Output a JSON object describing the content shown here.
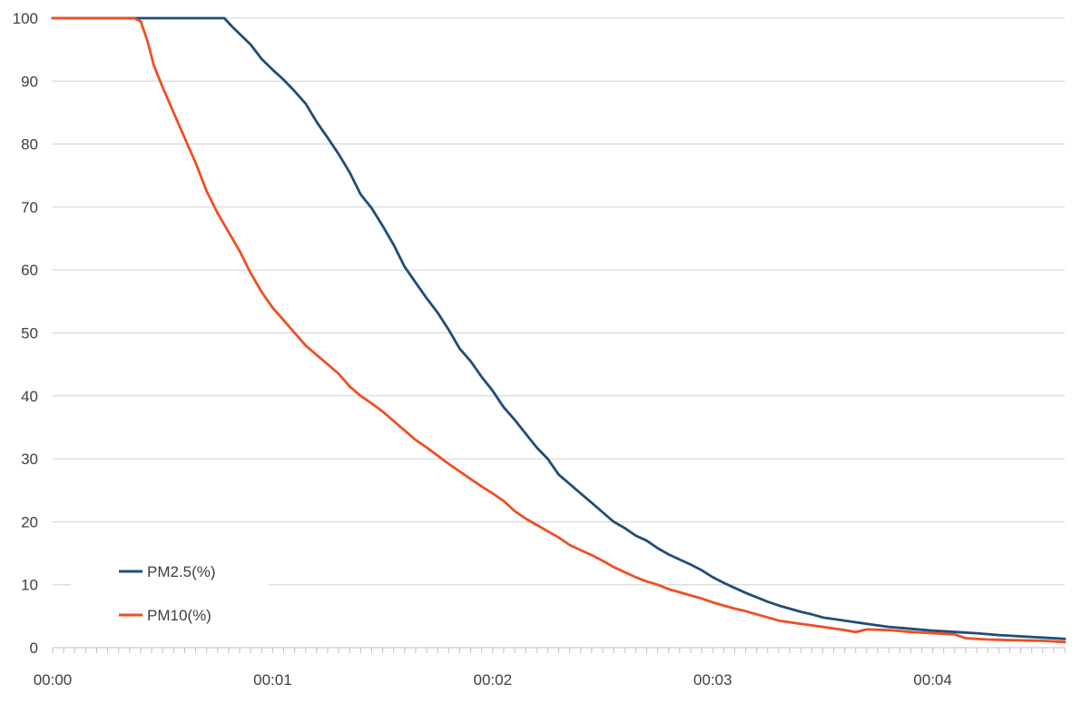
{
  "chart_data": {
    "type": "line",
    "title": "",
    "xlabel": "",
    "ylabel": "",
    "x_tick_labels": [
      "00:00",
      "00:01",
      "00:02",
      "00:03",
      "00:04"
    ],
    "x_unit": "minutes",
    "xlim": [
      0,
      4.6
    ],
    "ylim": [
      0,
      100
    ],
    "y_ticks": [
      0,
      10,
      20,
      30,
      40,
      50,
      60,
      70,
      80,
      90,
      100
    ],
    "grid": true,
    "legend_position": "bottom-left",
    "series": [
      {
        "name": "PM2.5(%)",
        "color": "#1F4E79",
        "points": [
          [
            0,
            100
          ],
          [
            0.7,
            100
          ],
          [
            0.78,
            100
          ],
          [
            0.82,
            98.5
          ],
          [
            0.9,
            95.8
          ],
          [
            0.95,
            93.5
          ],
          [
            1.0,
            91.8
          ],
          [
            1.05,
            90.2
          ],
          [
            1.1,
            88.4
          ],
          [
            1.15,
            86.4
          ],
          [
            1.2,
            83.5
          ],
          [
            1.25,
            81.0
          ],
          [
            1.3,
            78.4
          ],
          [
            1.35,
            75.5
          ],
          [
            1.4,
            72.0
          ],
          [
            1.45,
            69.8
          ],
          [
            1.5,
            67.0
          ],
          [
            1.55,
            64.0
          ],
          [
            1.6,
            60.5
          ],
          [
            1.65,
            58.0
          ],
          [
            1.7,
            55.5
          ],
          [
            1.75,
            53.2
          ],
          [
            1.8,
            50.5
          ],
          [
            1.85,
            47.5
          ],
          [
            1.9,
            45.5
          ],
          [
            1.95,
            43.0
          ],
          [
            2.0,
            40.8
          ],
          [
            2.05,
            38.2
          ],
          [
            2.1,
            36.2
          ],
          [
            2.15,
            34.0
          ],
          [
            2.2,
            31.8
          ],
          [
            2.25,
            30.0
          ],
          [
            2.3,
            27.5
          ],
          [
            2.35,
            26.0
          ],
          [
            2.4,
            24.5
          ],
          [
            2.45,
            23.0
          ],
          [
            2.5,
            21.5
          ],
          [
            2.55,
            20.0
          ],
          [
            2.6,
            19.0
          ],
          [
            2.65,
            17.8
          ],
          [
            2.7,
            17.0
          ],
          [
            2.75,
            15.8
          ],
          [
            2.8,
            14.8
          ],
          [
            2.85,
            14.0
          ],
          [
            2.9,
            13.2
          ],
          [
            2.95,
            12.3
          ],
          [
            3.0,
            11.2
          ],
          [
            3.05,
            10.3
          ],
          [
            3.1,
            9.5
          ],
          [
            3.15,
            8.7
          ],
          [
            3.2,
            8.0
          ],
          [
            3.25,
            7.3
          ],
          [
            3.3,
            6.7
          ],
          [
            3.35,
            6.2
          ],
          [
            3.4,
            5.7
          ],
          [
            3.45,
            5.3
          ],
          [
            3.5,
            4.8
          ],
          [
            3.6,
            4.3
          ],
          [
            3.7,
            3.8
          ],
          [
            3.8,
            3.3
          ],
          [
            3.9,
            3.0
          ],
          [
            4.0,
            2.7
          ],
          [
            4.1,
            2.5
          ],
          [
            4.2,
            2.3
          ],
          [
            4.3,
            2.0
          ],
          [
            4.4,
            1.8
          ],
          [
            4.5,
            1.6
          ],
          [
            4.6,
            1.4
          ]
        ]
      },
      {
        "name": "PM10(%)",
        "color": "#F04E23",
        "points": [
          [
            0,
            100
          ],
          [
            0.37,
            100
          ],
          [
            0.4,
            99.5
          ],
          [
            0.43,
            96.5
          ],
          [
            0.46,
            92.5
          ],
          [
            0.5,
            89.0
          ],
          [
            0.55,
            85.0
          ],
          [
            0.6,
            81.0
          ],
          [
            0.65,
            77.0
          ],
          [
            0.7,
            72.5
          ],
          [
            0.75,
            69.0
          ],
          [
            0.8,
            66.0
          ],
          [
            0.85,
            63.0
          ],
          [
            0.9,
            59.5
          ],
          [
            0.95,
            56.5
          ],
          [
            1.0,
            54.0
          ],
          [
            1.05,
            52.0
          ],
          [
            1.1,
            50.0
          ],
          [
            1.15,
            48.0
          ],
          [
            1.2,
            46.5
          ],
          [
            1.25,
            45.0
          ],
          [
            1.3,
            43.5
          ],
          [
            1.35,
            41.5
          ],
          [
            1.4,
            40.0
          ],
          [
            1.45,
            38.8
          ],
          [
            1.5,
            37.5
          ],
          [
            1.55,
            36.0
          ],
          [
            1.6,
            34.5
          ],
          [
            1.65,
            33.0
          ],
          [
            1.7,
            31.8
          ],
          [
            1.75,
            30.5
          ],
          [
            1.8,
            29.2
          ],
          [
            1.85,
            28.0
          ],
          [
            1.9,
            26.8
          ],
          [
            1.95,
            25.6
          ],
          [
            2.0,
            24.5
          ],
          [
            2.05,
            23.3
          ],
          [
            2.1,
            21.7
          ],
          [
            2.15,
            20.5
          ],
          [
            2.2,
            19.5
          ],
          [
            2.25,
            18.5
          ],
          [
            2.3,
            17.5
          ],
          [
            2.35,
            16.3
          ],
          [
            2.4,
            15.5
          ],
          [
            2.45,
            14.7
          ],
          [
            2.5,
            13.8
          ],
          [
            2.55,
            12.8
          ],
          [
            2.6,
            12.0
          ],
          [
            2.65,
            11.2
          ],
          [
            2.7,
            10.5
          ],
          [
            2.75,
            10.0
          ],
          [
            2.8,
            9.3
          ],
          [
            2.85,
            8.8
          ],
          [
            2.9,
            8.3
          ],
          [
            2.95,
            7.8
          ],
          [
            3.0,
            7.2
          ],
          [
            3.05,
            6.7
          ],
          [
            3.1,
            6.2
          ],
          [
            3.15,
            5.8
          ],
          [
            3.2,
            5.3
          ],
          [
            3.25,
            4.8
          ],
          [
            3.3,
            4.3
          ],
          [
            3.4,
            3.8
          ],
          [
            3.5,
            3.3
          ],
          [
            3.6,
            2.8
          ],
          [
            3.65,
            2.5
          ],
          [
            3.7,
            2.9
          ],
          [
            3.8,
            2.8
          ],
          [
            3.9,
            2.5
          ],
          [
            4.0,
            2.3
          ],
          [
            4.1,
            2.1
          ],
          [
            4.15,
            1.5
          ],
          [
            4.25,
            1.3
          ],
          [
            4.35,
            1.2
          ],
          [
            4.5,
            1.1
          ],
          [
            4.6,
            0.9
          ]
        ]
      }
    ]
  }
}
